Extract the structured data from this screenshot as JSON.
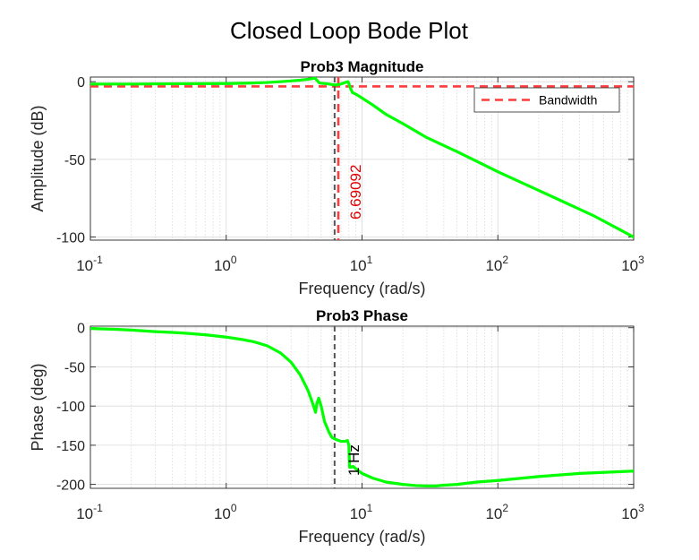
{
  "suptitle": "Closed Loop Bode Plot",
  "colors": {
    "trace": "#00ff00",
    "bandwidth": "#ff3b3b",
    "annotation_red": "#e00000",
    "marker_line": "#555555",
    "grid": "#d9d9d9",
    "axis": "#262626"
  },
  "chart_data": [
    {
      "type": "line",
      "title": "Prob3 Magnitude",
      "xlabel": "Frequency (rad/s)",
      "ylabel": "Amplitude (dB)",
      "xscale": "log",
      "xlim": [
        0.1,
        1000
      ],
      "ylim": [
        -102,
        3
      ],
      "xticks": [
        0.1,
        1,
        10,
        100,
        1000
      ],
      "xtick_labels": [
        [
          "10",
          "-1"
        ],
        [
          "10",
          "0"
        ],
        [
          "10",
          "1"
        ],
        [
          "10",
          "2"
        ],
        [
          "10",
          "3"
        ]
      ],
      "yticks": [
        0,
        -50,
        -100
      ],
      "ytick_labels": [
        "0",
        "-50",
        "-100"
      ],
      "grid": true,
      "legend": {
        "position": "top-right",
        "entries": [
          "Bandwidth"
        ]
      },
      "series": [
        {
          "x": [
            0.1,
            0.2,
            0.5,
            1,
            1.5,
            2,
            2.5,
            3,
            3.5,
            4,
            4.3,
            4.5,
            4.7,
            4.85,
            5,
            5.5,
            6,
            6.5,
            7,
            7.5,
            7.9,
            8.2,
            8.5,
            9,
            10,
            12,
            15,
            20,
            30,
            50,
            100,
            200,
            500,
            1000
          ],
          "y": [
            -1.5,
            -1.5,
            -1.3,
            -1.2,
            -0.9,
            -0.5,
            0.0,
            0.5,
            1.0,
            1.6,
            2.0,
            2.3,
            0.5,
            -0.8,
            -1.0,
            -1.3,
            -1.8,
            -2.1,
            -1.5,
            -0.5,
            0.0,
            -4.0,
            -7.0,
            -8.0,
            -10.5,
            -15,
            -21,
            -27,
            -36,
            -45,
            -58,
            -70,
            -86,
            -100
          ]
        }
      ],
      "reference_lines": [
        {
          "orientation": "horizontal",
          "label": "Bandwidth",
          "value": -3,
          "style": "dashed"
        },
        {
          "orientation": "vertical",
          "label": "6.69092",
          "value": 6.69092,
          "style": "dashed"
        },
        {
          "orientation": "vertical",
          "label": "",
          "value": 6.28,
          "style": "dashed"
        }
      ]
    },
    {
      "type": "line",
      "title": "Prob3 Phase",
      "xlabel": "Frequency (rad/s)",
      "ylabel": "Phase (deg)",
      "xscale": "log",
      "xlim": [
        0.1,
        1000
      ],
      "ylim": [
        -205,
        2
      ],
      "xticks": [
        0.1,
        1,
        10,
        100,
        1000
      ],
      "xtick_labels": [
        [
          "10",
          "-1"
        ],
        [
          "10",
          "0"
        ],
        [
          "10",
          "1"
        ],
        [
          "10",
          "2"
        ],
        [
          "10",
          "3"
        ]
      ],
      "yticks": [
        0,
        -50,
        -100,
        -150,
        -200
      ],
      "ytick_labels": [
        "0",
        "-50",
        "-100",
        "-150",
        "-200"
      ],
      "grid": true,
      "series": [
        {
          "x": [
            0.1,
            0.15,
            0.2,
            0.3,
            0.4,
            0.5,
            0.7,
            1,
            1.3,
            1.6,
            2,
            2.5,
            3,
            3.5,
            4,
            4.3,
            4.55,
            4.65,
            4.8,
            5,
            5.3,
            5.7,
            6,
            6.5,
            7,
            7.5,
            7.8,
            8.0,
            8.1,
            8.3,
            8.6,
            9,
            10,
            12,
            15,
            20,
            25,
            30,
            35,
            40,
            50,
            70,
            100,
            200,
            400,
            1000
          ],
          "y": [
            -1,
            -2,
            -3,
            -5,
            -6,
            -7,
            -9,
            -12,
            -15,
            -18,
            -23,
            -32,
            -44,
            -60,
            -80,
            -95,
            -108,
            -97,
            -90,
            -100,
            -120,
            -133,
            -140,
            -143,
            -145,
            -145,
            -144,
            -150,
            -178,
            -178,
            -177,
            -180,
            -186,
            -192,
            -197,
            -200,
            -201.5,
            -202,
            -202,
            -201,
            -200,
            -197,
            -195,
            -190,
            -186,
            -183
          ]
        }
      ],
      "reference_lines": [
        {
          "orientation": "vertical",
          "label": "1 Hz",
          "value": 6.28,
          "style": "dashed"
        }
      ]
    }
  ]
}
